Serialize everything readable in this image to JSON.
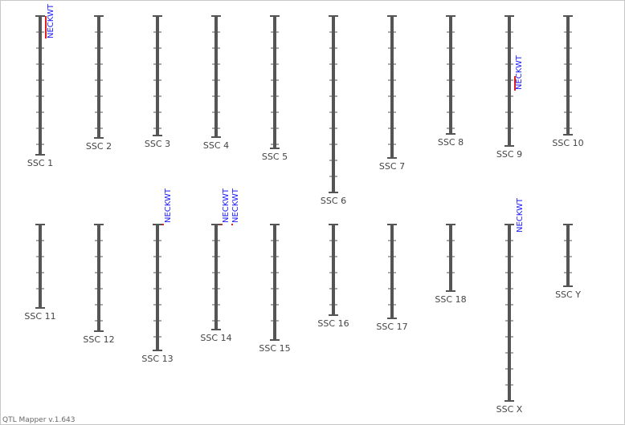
{
  "chromosomes": [
    {
      "label": "SSC 1",
      "qtls": [
        {
          "label": "NECKWT"
        }
      ]
    },
    {
      "label": "SSC 2",
      "qtls": []
    },
    {
      "label": "SSC 3",
      "qtls": []
    },
    {
      "label": "SSC 4",
      "qtls": []
    },
    {
      "label": "SSC 5",
      "qtls": []
    },
    {
      "label": "SSC 6",
      "qtls": []
    },
    {
      "label": "SSC 7",
      "qtls": []
    },
    {
      "label": "SSC 8",
      "qtls": []
    },
    {
      "label": "SSC 9",
      "qtls": [
        {
          "label": "NECKWT"
        }
      ]
    },
    {
      "label": "SSC 10",
      "qtls": []
    },
    {
      "label": "SSC 11",
      "qtls": []
    },
    {
      "label": "SSC 12",
      "qtls": []
    },
    {
      "label": "SSC 13",
      "qtls": [
        {
          "label": "NECKWT"
        }
      ]
    },
    {
      "label": "SSC 14",
      "qtls": [
        {
          "label": "NECKWT"
        },
        {
          "label": "NECKWT"
        }
      ]
    },
    {
      "label": "SSC 15",
      "qtls": []
    },
    {
      "label": "SSC 16",
      "qtls": []
    },
    {
      "label": "SSC 17",
      "qtls": []
    },
    {
      "label": "SSC 18",
      "qtls": []
    },
    {
      "label": "SSC X",
      "qtls": [
        {
          "label": "NECKWT"
        }
      ]
    },
    {
      "label": "SSC Y",
      "qtls": []
    }
  ],
  "footer": "QTL Mapper v.1.643"
}
